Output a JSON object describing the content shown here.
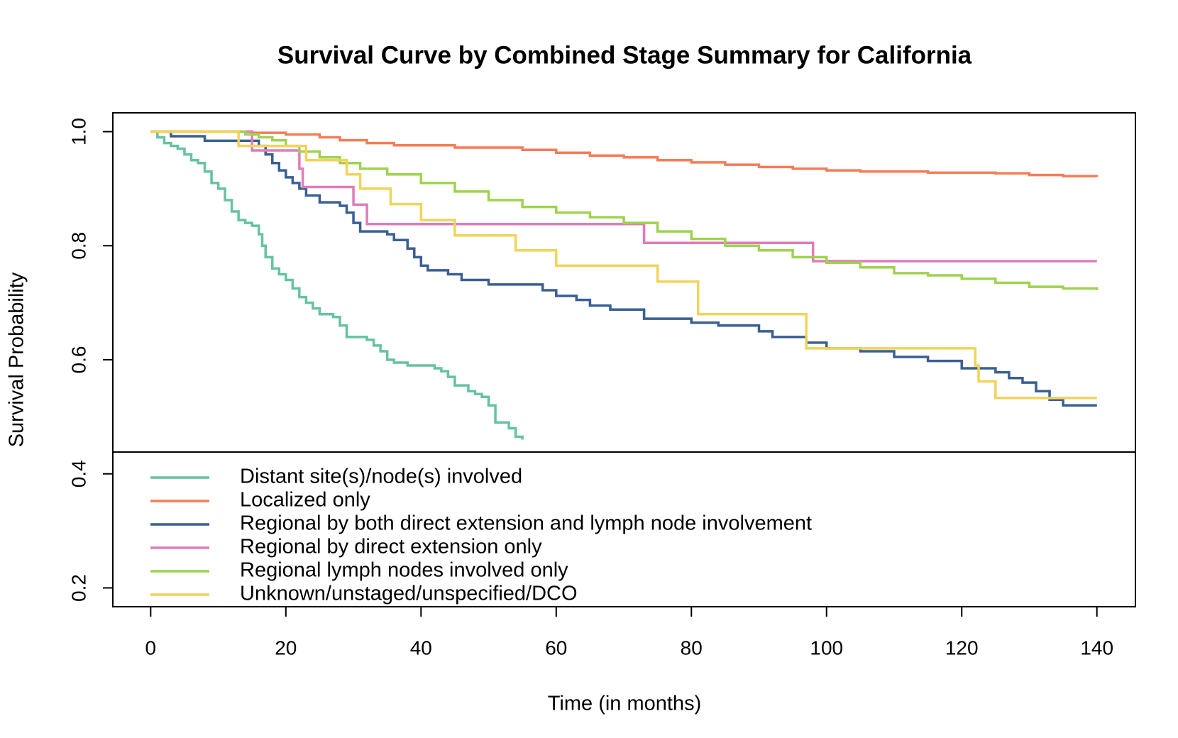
{
  "chart_data": {
    "type": "line",
    "steps": "post",
    "title": "Survival Curve by Combined Stage Summary for California",
    "x_label": "Time (in months)",
    "y_label": "Survival Probability",
    "xlim": [
      -5.6,
      145.7
    ],
    "ylim": [
      0.167,
      1.033
    ],
    "xticks": [
      0,
      20,
      40,
      60,
      80,
      100,
      120,
      140
    ],
    "yticks": [
      0.2,
      0.4,
      0.6,
      0.8,
      {
        "value": 1,
        "label": "1.0"
      }
    ],
    "legend": "bottom",
    "series": [
      {
        "name": "Distant site(s)/node(s) involved",
        "color": "#66c2a5",
        "x": [
          0,
          1,
          2,
          3,
          4,
          5,
          6,
          7,
          8,
          9,
          10,
          11,
          12,
          13,
          14,
          15,
          16,
          16.5,
          17,
          18,
          19,
          20,
          21,
          22,
          23,
          24,
          25,
          27,
          28,
          29,
          32,
          33,
          34,
          35,
          36,
          38,
          42,
          43,
          44,
          45,
          47,
          48,
          49,
          50,
          51,
          53,
          54,
          55
        ],
        "values": [
          1,
          0.99,
          0.98,
          0.975,
          0.97,
          0.96,
          0.95,
          0.945,
          0.93,
          0.91,
          0.9,
          0.88,
          0.86,
          0.845,
          0.84,
          0.835,
          0.82,
          0.8,
          0.78,
          0.76,
          0.75,
          0.74,
          0.725,
          0.71,
          0.7,
          0.69,
          0.68,
          0.675,
          0.66,
          0.64,
          0.635,
          0.625,
          0.615,
          0.6,
          0.595,
          0.59,
          0.585,
          0.58,
          0.57,
          0.555,
          0.545,
          0.54,
          0.535,
          0.52,
          0.49,
          0.48,
          0.465,
          0.46
        ]
      },
      {
        "name": "Localized only",
        "color": "#f47d57",
        "x": [
          0,
          15,
          20,
          25,
          28,
          32,
          36,
          45,
          55,
          60,
          65,
          70,
          75,
          80,
          85,
          90,
          95,
          100,
          105,
          115,
          125,
          130,
          135,
          140
        ],
        "values": [
          1,
          0.998,
          0.995,
          0.99,
          0.985,
          0.98,
          0.976,
          0.972,
          0.968,
          0.963,
          0.958,
          0.955,
          0.95,
          0.946,
          0.942,
          0.938,
          0.935,
          0.932,
          0.93,
          0.928,
          0.927,
          0.924,
          0.922,
          0.921
        ]
      },
      {
        "name": "Regional by both direct extension and lymph node involvement",
        "color": "#3a5f93",
        "x": [
          0,
          3,
          8,
          16,
          17,
          18,
          19,
          20,
          21,
          22,
          23,
          25,
          28,
          29,
          30,
          31,
          35,
          36,
          38,
          39,
          40,
          41,
          44,
          46,
          50,
          58,
          60,
          63,
          65,
          68,
          73,
          80,
          84,
          90,
          92,
          97,
          100,
          105,
          110,
          115,
          120,
          125,
          127,
          129,
          131,
          133,
          135,
          140
        ],
        "values": [
          1,
          0.992,
          0.984,
          0.975,
          0.96,
          0.945,
          0.932,
          0.92,
          0.91,
          0.9,
          0.888,
          0.876,
          0.87,
          0.858,
          0.84,
          0.825,
          0.82,
          0.81,
          0.795,
          0.78,
          0.765,
          0.757,
          0.75,
          0.74,
          0.732,
          0.722,
          0.712,
          0.705,
          0.695,
          0.688,
          0.672,
          0.665,
          0.66,
          0.65,
          0.64,
          0.63,
          0.62,
          0.615,
          0.605,
          0.598,
          0.585,
          0.578,
          0.568,
          0.56,
          0.545,
          0.53,
          0.52,
          0.52
        ]
      },
      {
        "name": "Regional by direct extension only",
        "color": "#df7cba",
        "x": [
          0,
          15,
          22,
          22.5,
          30,
          32,
          73,
          98,
          140
        ],
        "values": [
          1,
          0.967,
          0.935,
          0.903,
          0.872,
          0.838,
          0.805,
          0.773,
          0.773
        ]
      },
      {
        "name": "Regional lymph nodes involved only",
        "color": "#9fd24e",
        "x": [
          0,
          14,
          16,
          18,
          20,
          22,
          25,
          28,
          31,
          35,
          40,
          45,
          50,
          55,
          60,
          65,
          70,
          75,
          80,
          85,
          90,
          95,
          100,
          105,
          110,
          115,
          120,
          125,
          130,
          135,
          140
        ],
        "values": [
          1,
          0.995,
          0.99,
          0.985,
          0.975,
          0.965,
          0.955,
          0.945,
          0.935,
          0.925,
          0.91,
          0.895,
          0.88,
          0.868,
          0.858,
          0.85,
          0.84,
          0.825,
          0.812,
          0.8,
          0.792,
          0.78,
          0.77,
          0.762,
          0.752,
          0.748,
          0.742,
          0.735,
          0.728,
          0.725,
          0.722
        ]
      },
      {
        "name": "Unknown/unstaged/unspecified/DCO",
        "color": "#f2d35a",
        "x": [
          0,
          13,
          23,
          29,
          31,
          35.5,
          40,
          45,
          54,
          60,
          75,
          81,
          97,
          122,
          122.5,
          125,
          140
        ],
        "values": [
          1,
          0.975,
          0.95,
          0.925,
          0.9,
          0.873,
          0.845,
          0.818,
          0.792,
          0.765,
          0.737,
          0.68,
          0.62,
          0.59,
          0.562,
          0.533,
          0.533
        ]
      }
    ]
  }
}
